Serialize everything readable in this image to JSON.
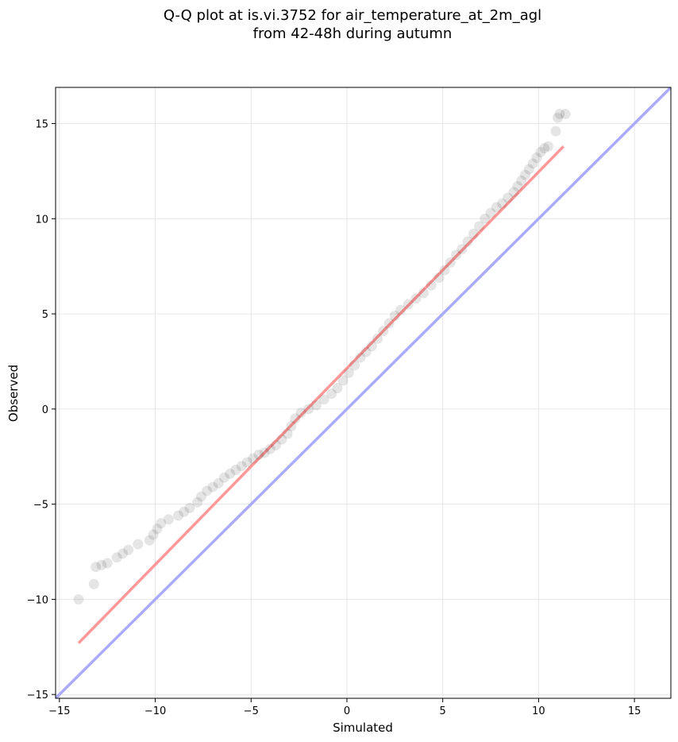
{
  "chart_data": {
    "type": "scatter",
    "title_line1": "Q-Q plot at is.vi.3752 for air_temperature_at_2m_agl",
    "title_line2": "from 42-48h during autumn",
    "xlabel": "Simulated",
    "ylabel": "Observed",
    "xlim": [
      -15.2,
      16.9
    ],
    "ylim": [
      -15.2,
      16.9
    ],
    "xticks": [
      -15,
      -10,
      -5,
      0,
      5,
      10,
      15
    ],
    "yticks": [
      -15,
      -10,
      -5,
      0,
      5,
      10,
      15
    ],
    "xtick_labels": [
      "−15",
      "−10",
      "−5",
      "0",
      "5",
      "10",
      "15"
    ],
    "ytick_labels": [
      "−15",
      "−10",
      "−5",
      "0",
      "5",
      "10",
      "15"
    ],
    "grid": true,
    "identity_line": {
      "color": "#aaaaff",
      "from": [
        -15.2,
        -15.2
      ],
      "to": [
        16.9,
        16.9
      ]
    },
    "fit_line": {
      "color": "#ff9999",
      "from": [
        -14,
        -12.3
      ],
      "to": [
        11.3,
        13.8
      ]
    },
    "point_color": "#000000",
    "points": [
      [
        -14.0,
        -10.0
      ],
      [
        -13.2,
        -9.2
      ],
      [
        -13.1,
        -8.3
      ],
      [
        -12.8,
        -8.2
      ],
      [
        -12.5,
        -8.1
      ],
      [
        -12.0,
        -7.8
      ],
      [
        -11.7,
        -7.6
      ],
      [
        -11.4,
        -7.4
      ],
      [
        -10.9,
        -7.1
      ],
      [
        -10.3,
        -6.9
      ],
      [
        -10.1,
        -6.6
      ],
      [
        -9.9,
        -6.3
      ],
      [
        -9.7,
        -6.0
      ],
      [
        -9.3,
        -5.8
      ],
      [
        -8.8,
        -5.6
      ],
      [
        -8.5,
        -5.4
      ],
      [
        -8.2,
        -5.2
      ],
      [
        -7.8,
        -4.9
      ],
      [
        -7.6,
        -4.6
      ],
      [
        -7.3,
        -4.3
      ],
      [
        -7.0,
        -4.1
      ],
      [
        -6.7,
        -3.9
      ],
      [
        -6.4,
        -3.6
      ],
      [
        -6.1,
        -3.4
      ],
      [
        -5.8,
        -3.2
      ],
      [
        -5.5,
        -3.0
      ],
      [
        -5.2,
        -2.8
      ],
      [
        -4.9,
        -2.6
      ],
      [
        -4.6,
        -2.4
      ],
      [
        -4.3,
        -2.3
      ],
      [
        -4.0,
        -2.1
      ],
      [
        -3.7,
        -1.9
      ],
      [
        -3.4,
        -1.6
      ],
      [
        -3.1,
        -1.3
      ],
      [
        -2.9,
        -0.9
      ],
      [
        -2.7,
        -0.5
      ],
      [
        -2.4,
        -0.2
      ],
      [
        -2.0,
        0.0
      ],
      [
        -1.6,
        0.2
      ],
      [
        -1.2,
        0.5
      ],
      [
        -0.8,
        0.8
      ],
      [
        -0.5,
        1.1
      ],
      [
        -0.2,
        1.5
      ],
      [
        0.1,
        1.9
      ],
      [
        0.4,
        2.3
      ],
      [
        0.7,
        2.7
      ],
      [
        1.0,
        3.0
      ],
      [
        1.3,
        3.3
      ],
      [
        1.6,
        3.7
      ],
      [
        1.9,
        4.1
      ],
      [
        2.2,
        4.5
      ],
      [
        2.5,
        4.9
      ],
      [
        2.8,
        5.2
      ],
      [
        3.2,
        5.5
      ],
      [
        3.6,
        5.8
      ],
      [
        4.0,
        6.1
      ],
      [
        4.4,
        6.5
      ],
      [
        4.8,
        6.9
      ],
      [
        5.1,
        7.3
      ],
      [
        5.4,
        7.7
      ],
      [
        5.7,
        8.1
      ],
      [
        6.0,
        8.4
      ],
      [
        6.3,
        8.8
      ],
      [
        6.6,
        9.2
      ],
      [
        6.9,
        9.6
      ],
      [
        7.2,
        10.0
      ],
      [
        7.5,
        10.3
      ],
      [
        7.8,
        10.6
      ],
      [
        8.1,
        10.8
      ],
      [
        8.4,
        11.1
      ],
      [
        8.7,
        11.4
      ],
      [
        8.9,
        11.7
      ],
      [
        9.1,
        12.0
      ],
      [
        9.3,
        12.3
      ],
      [
        9.5,
        12.6
      ],
      [
        9.7,
        12.9
      ],
      [
        9.9,
        13.2
      ],
      [
        10.1,
        13.5
      ],
      [
        10.3,
        13.7
      ],
      [
        10.5,
        13.8
      ],
      [
        10.9,
        14.6
      ],
      [
        11.0,
        15.3
      ],
      [
        11.1,
        15.5
      ],
      [
        11.4,
        15.5
      ]
    ]
  }
}
